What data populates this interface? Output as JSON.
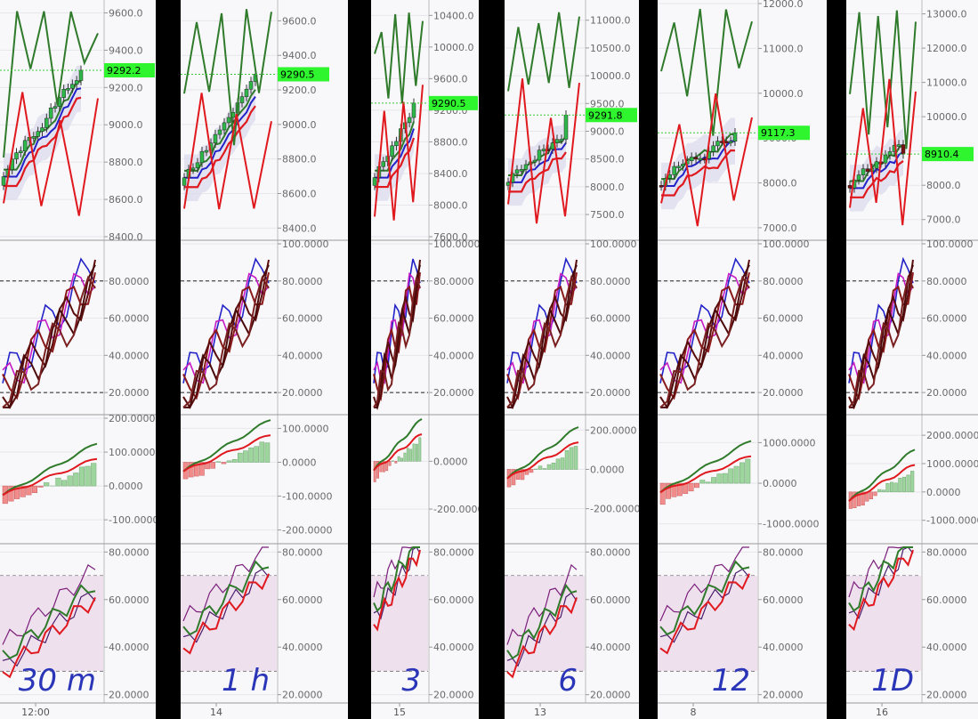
{
  "chart_data": [
    {
      "timeframe": "30 m",
      "x_tick": "12:00",
      "panels": {
        "price": {
          "y_ticks": [
            "9600.0",
            "9400.0",
            "9200.0",
            "9000.0",
            "8800.0",
            "8600.0",
            "8400.0"
          ],
          "last_price": "9292.2",
          "ylim": [
            8400,
            9650
          ]
        },
        "stoch": {
          "y_ticks": [
            "80.0000",
            "60.0000",
            "40.0000",
            "20.0000"
          ],
          "ylim": [
            10,
            100
          ],
          "levels": [
            80,
            20
          ]
        },
        "macd": {
          "y_ticks": [
            "200.0000",
            "100.0000",
            "0.0000",
            "-100.0000"
          ],
          "ylim": [
            -160,
            200
          ]
        },
        "rsi": {
          "y_ticks": [
            "80.0000",
            "60.0000",
            "40.0000",
            "20.0000"
          ],
          "ylim": [
            18,
            82
          ],
          "levels": [
            70,
            30
          ]
        }
      },
      "annotation": "30 m"
    },
    {
      "timeframe": "1 h",
      "x_tick": "14",
      "panels": {
        "price": {
          "y_ticks": [
            "9600.0",
            "9400.0",
            "9200.0",
            "9000.0",
            "8800.0",
            "8600.0",
            "8400.0"
          ],
          "last_price": "9290.5",
          "ylim": [
            8350,
            9700
          ]
        },
        "stoch": {
          "y_ticks": [
            "100.0000",
            "80.0000",
            "60.0000",
            "40.0000",
            "20.0000"
          ],
          "ylim": [
            10,
            100
          ],
          "levels": [
            80,
            20
          ]
        },
        "macd": {
          "y_ticks": [
            "100.0000",
            "0.0000",
            "-100.0000",
            "-200.0000"
          ],
          "ylim": [
            -230,
            130
          ]
        },
        "rsi": {
          "y_ticks": [
            "80.0000",
            "60.0000",
            "40.0000",
            "20.0000"
          ],
          "ylim": [
            18,
            82
          ],
          "levels": [
            70,
            30
          ]
        }
      },
      "annotation": "1 h"
    },
    {
      "timeframe": "3",
      "x_tick": "15",
      "panels": {
        "price": {
          "y_ticks": [
            "10400.0",
            "10000.0",
            "9600.0",
            "9200.0",
            "8800.0",
            "8400.0",
            "8000.0",
            "7600.0"
          ],
          "last_price": "9290.5",
          "ylim": [
            7600,
            10550
          ]
        },
        "stoch": {
          "y_ticks": [
            "100.0000",
            "80.0000",
            "60.0000",
            "40.0000",
            "20.0000"
          ],
          "ylim": [
            10,
            100
          ],
          "levels": [
            80,
            20
          ]
        },
        "macd": {
          "y_ticks": [
            "0.0000",
            "-200.0000"
          ],
          "ylim": [
            -330,
            180
          ]
        },
        "rsi": {
          "y_ticks": [
            "80.0000",
            "60.0000",
            "40.0000",
            "20.0000"
          ],
          "ylim": [
            18,
            82
          ],
          "levels": [
            70,
            30
          ]
        }
      },
      "annotation": "3"
    },
    {
      "timeframe": "6",
      "x_tick": "13",
      "panels": {
        "price": {
          "y_ticks": [
            "11000.0",
            "10500.0",
            "10000.0",
            "9500.0",
            "9000.0",
            "8500.0",
            "8000.0",
            "7500.0"
          ],
          "last_price": "9291.8",
          "ylim": [
            7100,
            11300
          ]
        },
        "stoch": {
          "y_ticks": [
            "100.0000",
            "80.0000",
            "60.0000",
            "40.0000",
            "20.0000"
          ],
          "ylim": [
            10,
            100
          ],
          "levels": [
            80,
            20
          ]
        },
        "macd": {
          "y_ticks": [
            "200.0000",
            "0.0000",
            "-200.0000"
          ],
          "ylim": [
            -360,
            260
          ]
        },
        "rsi": {
          "y_ticks": [
            "80.0000",
            "60.0000",
            "40.0000",
            "20.0000"
          ],
          "ylim": [
            18,
            82
          ],
          "levels": [
            70,
            30
          ]
        }
      },
      "annotation": "6"
    },
    {
      "timeframe": "12",
      "x_tick": "8",
      "panels": {
        "price": {
          "y_ticks": [
            "12000.0",
            "11000.0",
            "10000.0",
            "9000.0",
            "8000.0",
            "7000.0"
          ],
          "last_price": "9117.3",
          "ylim": [
            6800,
            12000
          ]
        },
        "stoch": {
          "y_ticks": [
            "100.0000",
            "80.0000",
            "60.0000",
            "40.0000",
            "20.0000"
          ],
          "ylim": [
            10,
            100
          ],
          "levels": [
            80,
            20
          ]
        },
        "macd": {
          "y_ticks": [
            "1000.0000",
            "0.0000",
            "-1000.0000"
          ],
          "ylim": [
            -1400,
            1600
          ]
        },
        "rsi": {
          "y_ticks": [
            "80.0000",
            "60.0000",
            "40.0000",
            "20.0000"
          ],
          "ylim": [
            18,
            82
          ],
          "levels": [
            70,
            30
          ]
        }
      },
      "annotation": "12"
    },
    {
      "timeframe": "1D",
      "x_tick": "16",
      "panels": {
        "price": {
          "y_ticks": [
            "13000.0",
            "12000.0",
            "11000.0",
            "10000.0",
            "9000.0",
            "8000.0",
            "7000.0"
          ],
          "last_price": "8910.4",
          "ylim": [
            6500,
            13300
          ]
        },
        "stoch": {
          "y_ticks": [
            "100.0000",
            "80.0000",
            "60.0000",
            "40.0000",
            "20.0000"
          ],
          "ylim": [
            10,
            100
          ],
          "levels": [
            80,
            20
          ]
        },
        "macd": {
          "y_ticks": [
            "2000.0000",
            "1000.0000",
            "0.0000",
            "-1000.0000"
          ],
          "ylim": [
            -1700,
            2600
          ]
        },
        "rsi": {
          "y_ticks": [
            "80.0000",
            "60.0000",
            "40.0000",
            "20.0000"
          ],
          "ylim": [
            18,
            82
          ],
          "levels": [
            70,
            30
          ]
        }
      },
      "annotation": "1D"
    }
  ],
  "colors": {
    "bull": "#2fb84a",
    "bear": "#7a0f0f",
    "price_label_bg": "#2ef52e",
    "fast_line": "#2f7a2b",
    "slow_line": "#e0191f",
    "bb_fill": "#dcdcee",
    "rsi_band": "#efe0ee",
    "annotation": "#2a35b8"
  }
}
